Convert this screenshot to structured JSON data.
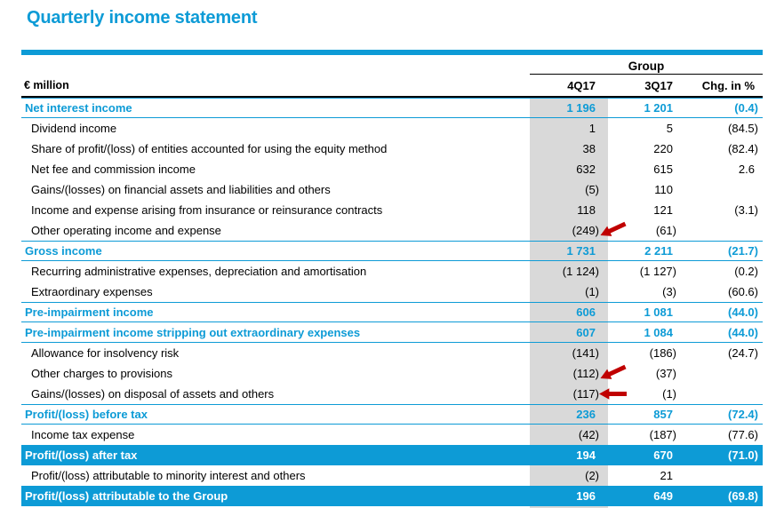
{
  "title": "Quarterly income statement",
  "colors": {
    "accent": "#0d9bd6",
    "band_fill": "#0d9bd6",
    "column_highlight": "#d9d9d9",
    "arrow_red": "#c00000",
    "rule_black": "#000000"
  },
  "table": {
    "unit_label": "€ million",
    "group_label": "Group",
    "columns": [
      "4Q17",
      "3Q17",
      "Chg. in %"
    ],
    "highlighted_column": "4Q17",
    "rows": [
      {
        "label": "Net interest income",
        "style": "subtotal",
        "q4": "1 196",
        "q3": "1 201",
        "chg": "(0.4)",
        "arrow": ""
      },
      {
        "label": "Dividend income",
        "style": "normal",
        "q4": "1",
        "q3": "5",
        "chg": "(84.5)",
        "arrow": ""
      },
      {
        "label": "Share of profit/(loss) of entities accounted for using the equity method",
        "style": "normal",
        "q4": "38",
        "q3": "220",
        "chg": "(82.4)",
        "arrow": ""
      },
      {
        "label": "Net fee and commission income",
        "style": "normal",
        "q4": "632",
        "q3": "615",
        "chg": "2.6",
        "arrow": ""
      },
      {
        "label": "Gains/(losses) on financial assets and liabilities and others",
        "style": "normal",
        "q4": "(5)",
        "q3": "110",
        "chg": "",
        "arrow": ""
      },
      {
        "label": "Income and expense arising from insurance or reinsurance contracts",
        "style": "normal",
        "q4": "118",
        "q3": "121",
        "chg": "(3.1)",
        "arrow": ""
      },
      {
        "label": "Other operating income and expense",
        "style": "normal",
        "q4": "(249)",
        "q3": "(61)",
        "chg": "",
        "arrow": "diagonal"
      },
      {
        "label": "Gross income",
        "style": "subtotal",
        "q4": "1 731",
        "q3": "2 211",
        "chg": "(21.7)",
        "arrow": ""
      },
      {
        "label": "Recurring administrative expenses, depreciation and amortisation",
        "style": "normal",
        "q4": "(1 124)",
        "q3": "(1 127)",
        "chg": "(0.2)",
        "arrow": ""
      },
      {
        "label": "Extraordinary expenses",
        "style": "normal",
        "q4": "(1)",
        "q3": "(3)",
        "chg": "(60.6)",
        "arrow": ""
      },
      {
        "label": "Pre-impairment income",
        "style": "subtotal",
        "q4": "606",
        "q3": "1 081",
        "chg": "(44.0)",
        "arrow": ""
      },
      {
        "label": "Pre-impairment income stripping out extraordinary expenses",
        "style": "subtotal",
        "q4": "607",
        "q3": "1 084",
        "chg": "(44.0)",
        "arrow": ""
      },
      {
        "label": "Allowance for insolvency risk",
        "style": "normal",
        "q4": "(141)",
        "q3": "(186)",
        "chg": "(24.7)",
        "arrow": ""
      },
      {
        "label": "Other charges to provisions",
        "style": "normal",
        "q4": "(112)",
        "q3": "(37)",
        "chg": "",
        "arrow": "diagonal"
      },
      {
        "label": "Gains/(losses) on disposal of assets and others",
        "style": "normal",
        "q4": "(117)",
        "q3": "(1)",
        "chg": "",
        "arrow": "horizontal"
      },
      {
        "label": "Profit/(loss) before tax",
        "style": "subtotal",
        "q4": "236",
        "q3": "857",
        "chg": "(72.4)",
        "arrow": ""
      },
      {
        "label": "Income tax expense",
        "style": "normal",
        "q4": "(42)",
        "q3": "(187)",
        "chg": "(77.6)",
        "arrow": ""
      },
      {
        "label": "Profit/(loss) after tax",
        "style": "band",
        "q4": "194",
        "q3": "670",
        "chg": "(71.0)",
        "arrow": ""
      },
      {
        "label": "Profit/(loss) attributable to minority interest and others",
        "style": "normal",
        "q4": "(2)",
        "q3": "21",
        "chg": "",
        "arrow": ""
      },
      {
        "label": "Profit/(loss) attributable to the Group",
        "style": "band",
        "q4": "196",
        "q3": "649",
        "chg": "(69.8)",
        "arrow": ""
      }
    ]
  }
}
